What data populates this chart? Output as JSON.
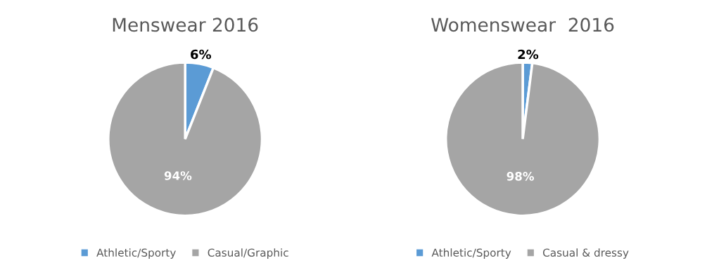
{
  "chart_data": [
    {
      "type": "pie",
      "title": "Menswear 2016",
      "categories": [
        "Athletic/Sporty",
        "Casual/Graphic"
      ],
      "values": [
        6,
        94
      ],
      "colors": [
        "#5b9bd5",
        "#a5a5a5"
      ],
      "value_labels": [
        "6%",
        "94%"
      ],
      "legend": "bottom"
    },
    {
      "type": "pie",
      "title": "Womenswear  2016",
      "categories": [
        "Athletic/Sporty",
        "Casual & dressy"
      ],
      "values": [
        2,
        98
      ],
      "colors": [
        "#5b9bd5",
        "#a5a5a5"
      ],
      "value_labels": [
        "2%",
        "98%"
      ],
      "legend": "bottom"
    }
  ]
}
